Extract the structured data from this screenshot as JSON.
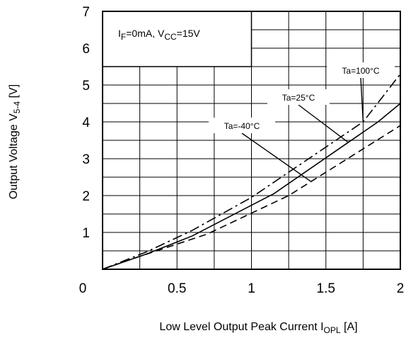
{
  "chart_data": {
    "type": "line",
    "xlabel": {
      "text": "Low Level Output Peak Current I",
      "sub": "OPL",
      "unit": " [A]"
    },
    "ylabel": {
      "text": "Output Voltage V",
      "sub": "5-4",
      "unit": " [V]"
    },
    "xlim": [
      0,
      2
    ],
    "ylim": [
      0,
      7
    ],
    "x_ticks": [
      "0",
      "0.5",
      "1",
      "1.5",
      "2"
    ],
    "y_ticks": [
      "1",
      "2",
      "3",
      "4",
      "5",
      "6",
      "7"
    ],
    "grid": true,
    "condition": {
      "p1": "I",
      "p1sub": "F",
      "p2": "=0mA, V",
      "p2sub": "CC",
      "p3": "=15V"
    },
    "series": [
      {
        "name": "Ta=-40°C",
        "style": "dashed",
        "x": [
          0,
          0.25,
          0.7,
          1.25,
          2.0
        ],
        "y": [
          0,
          0.35,
          0.95,
          2.0,
          3.9
        ]
      },
      {
        "name": "Ta=25°C",
        "style": "solid",
        "x": [
          0,
          0.3,
          0.6,
          1.15,
          1.85,
          2.0
        ],
        "y": [
          0,
          0.42,
          0.9,
          2.05,
          4.0,
          4.5
        ]
      },
      {
        "name": "Ta=100°C",
        "style": "dashdot",
        "x": [
          0,
          0.3,
          0.6,
          1.0,
          1.75,
          2.0
        ],
        "y": [
          0,
          0.48,
          1.05,
          1.95,
          4.0,
          5.3
        ]
      }
    ],
    "annotations": [
      {
        "text": "Ta=-40°C",
        "series": 0,
        "anchor_x": 1.4
      },
      {
        "text": "Ta=25°C",
        "series": 1,
        "anchor_x": 1.65
      },
      {
        "text": "Ta=100°C",
        "series": 2,
        "anchor_x": 1.75
      }
    ]
  }
}
